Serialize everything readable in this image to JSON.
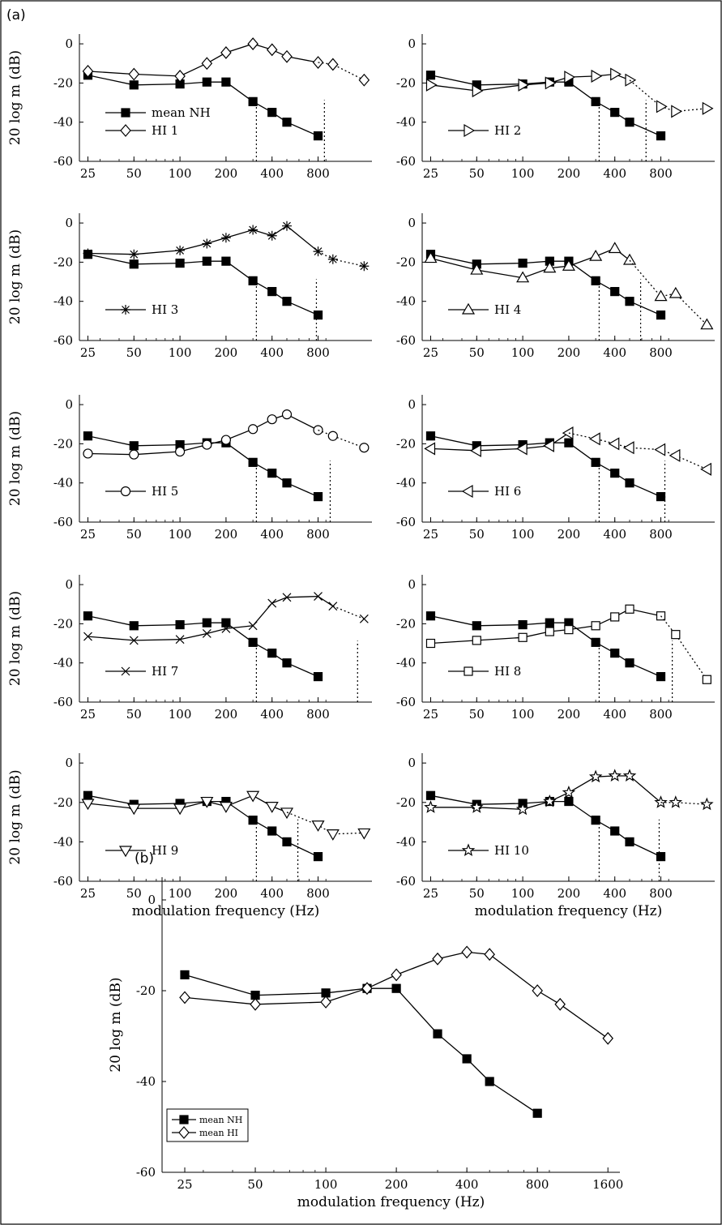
{
  "figure": {
    "panel_a_label": "(a)",
    "panel_b_label": "(b)"
  },
  "chart_data": [
    {
      "type": "line",
      "panel": "a",
      "index": 1,
      "x_scale": "log",
      "ylabel": "20 log m (dB)",
      "xlabel": "",
      "ylim": [
        -60,
        5
      ],
      "yticks": [
        "0",
        "-20",
        "-40",
        "-60"
      ],
      "xticks": [
        "25",
        "50",
        "100",
        "200",
        "400",
        "800"
      ],
      "legend_position": "lower-left",
      "series": [
        {
          "name": "mean NH",
          "marker": "square-filled",
          "x": [
            25,
            50,
            100,
            150,
            200,
            300,
            400,
            500,
            800
          ],
          "y": [
            -16,
            -21,
            -20.5,
            -19.5,
            -19.5,
            -29.5,
            -35,
            -40,
            -47
          ]
        },
        {
          "name": "HI 1",
          "marker": "diamond",
          "x": [
            25,
            50,
            100,
            150,
            200,
            300,
            400,
            500,
            800
          ],
          "y": [
            -14,
            -15.5,
            -16.5,
            -10,
            -4.5,
            0,
            -3,
            -6.5,
            -9.5
          ]
        },
        {
          "name": "",
          "marker": "diamond",
          "dotted": true,
          "x": [
            800,
            1000,
            1600
          ],
          "y": [
            -9.5,
            -10.5,
            -18.5
          ]
        }
      ],
      "cutoffs": [
        316,
        880
      ]
    },
    {
      "type": "line",
      "panel": "a",
      "index": 2,
      "x_scale": "log",
      "ylabel": "",
      "xlabel": "",
      "ylim": [
        -60,
        5
      ],
      "yticks": [
        "0",
        "-20",
        "-40",
        "-60"
      ],
      "xticks": [
        "25",
        "50",
        "100",
        "200",
        "400",
        "800"
      ],
      "legend_position": "lower-left",
      "series": [
        {
          "name": "mean NH",
          "marker": "square-filled",
          "x": [
            25,
            50,
            100,
            150,
            200,
            300,
            400,
            500,
            800
          ],
          "y": [
            -16,
            -21,
            -20.5,
            -19.5,
            -19.5,
            -29.5,
            -35,
            -40,
            -47
          ]
        },
        {
          "name": "HI 2",
          "marker": "triangle-right",
          "x": [
            25,
            50,
            100,
            150,
            200,
            300,
            400,
            500
          ],
          "y": [
            -21,
            -24,
            -21,
            -20,
            -17,
            -16.5,
            -15.5,
            -18.5
          ]
        },
        {
          "name": "",
          "marker": "triangle-right",
          "dotted": true,
          "x": [
            500,
            800,
            1000,
            1600
          ],
          "y": [
            -18.5,
            -32,
            -34.5,
            -33
          ]
        }
      ],
      "cutoffs": [
        316,
        640
      ]
    },
    {
      "type": "line",
      "panel": "a",
      "index": 3,
      "x_scale": "log",
      "ylabel": "20 log m (dB)",
      "xlabel": "",
      "ylim": [
        -60,
        5
      ],
      "yticks": [
        "0",
        "-20",
        "-40",
        "-60"
      ],
      "xticks": [
        "25",
        "50",
        "100",
        "200",
        "400",
        "800"
      ],
      "legend_position": "lower-left",
      "series": [
        {
          "name": "mean NH",
          "marker": "square-filled",
          "x": [
            25,
            50,
            100,
            150,
            200,
            300,
            400,
            500,
            800
          ],
          "y": [
            -16,
            -21,
            -20.5,
            -19.5,
            -19.5,
            -29.5,
            -35,
            -40,
            -47
          ]
        },
        {
          "name": "HI 3",
          "marker": "asterisk",
          "x": [
            25,
            50,
            100,
            150,
            200,
            300,
            400,
            500,
            800
          ],
          "y": [
            -15.5,
            -16,
            -14,
            -10.5,
            -7.5,
            -3.5,
            -6.5,
            -1.5,
            -14.5
          ]
        },
        {
          "name": "",
          "marker": "asterisk",
          "dotted": true,
          "x": [
            800,
            1000,
            1600
          ],
          "y": [
            -14.5,
            -18.5,
            -22
          ]
        }
      ],
      "cutoffs": [
        316,
        780
      ]
    },
    {
      "type": "line",
      "panel": "a",
      "index": 4,
      "x_scale": "log",
      "ylabel": "",
      "xlabel": "",
      "ylim": [
        -60,
        5
      ],
      "yticks": [
        "0",
        "-20",
        "-40",
        "-60"
      ],
      "xticks": [
        "25",
        "50",
        "100",
        "200",
        "400",
        "800"
      ],
      "legend_position": "lower-left",
      "series": [
        {
          "name": "mean NH",
          "marker": "square-filled",
          "x": [
            25,
            50,
            100,
            150,
            200,
            300,
            400,
            500,
            800
          ],
          "y": [
            -16,
            -21,
            -20.5,
            -19.5,
            -19.5,
            -29.5,
            -35,
            -40,
            -47
          ]
        },
        {
          "name": "HI 4",
          "marker": "triangle-up",
          "x": [
            25,
            50,
            100,
            150,
            200,
            300,
            400,
            500
          ],
          "y": [
            -18,
            -24,
            -28,
            -23,
            -22,
            -17,
            -13,
            -19
          ]
        },
        {
          "name": "",
          "marker": "triangle-up",
          "dotted": true,
          "x": [
            500,
            800,
            1000,
            1600
          ],
          "y": [
            -19,
            -37.5,
            -36,
            -52
          ]
        }
      ],
      "cutoffs": [
        316,
        590
      ]
    },
    {
      "type": "line",
      "panel": "a",
      "index": 5,
      "x_scale": "log",
      "ylabel": "20 log m (dB)",
      "xlabel": "",
      "ylim": [
        -60,
        5
      ],
      "yticks": [
        "0",
        "-20",
        "-40",
        "-60"
      ],
      "xticks": [
        "25",
        "50",
        "100",
        "200",
        "400",
        "800"
      ],
      "legend_position": "lower-left",
      "series": [
        {
          "name": "mean NH",
          "marker": "square-filled",
          "x": [
            25,
            50,
            100,
            150,
            200,
            300,
            400,
            500,
            800
          ],
          "y": [
            -16,
            -21,
            -20.5,
            -19.5,
            -19.5,
            -29.5,
            -35,
            -40,
            -47
          ]
        },
        {
          "name": "HI 5",
          "marker": "circle",
          "x": [
            25,
            50,
            100,
            150,
            200,
            300,
            400,
            500,
            800
          ],
          "y": [
            -25,
            -25.5,
            -24,
            -20.5,
            -18,
            -12.5,
            -7.5,
            -5,
            -13
          ]
        },
        {
          "name": "",
          "marker": "circle",
          "dotted": true,
          "x": [
            800,
            1000,
            1600
          ],
          "y": [
            -13,
            -16,
            -22
          ]
        }
      ],
      "cutoffs": [
        316,
        960
      ]
    },
    {
      "type": "line",
      "panel": "a",
      "index": 6,
      "x_scale": "log",
      "ylabel": "",
      "xlabel": "",
      "ylim": [
        -60,
        5
      ],
      "yticks": [
        "0",
        "-20",
        "-40",
        "-60"
      ],
      "xticks": [
        "25",
        "50",
        "100",
        "200",
        "400",
        "800"
      ],
      "legend_position": "lower-left",
      "series": [
        {
          "name": "mean NH",
          "marker": "square-filled",
          "x": [
            25,
            50,
            100,
            150,
            200,
            300,
            400,
            500,
            800
          ],
          "y": [
            -16,
            -21,
            -20.5,
            -19.5,
            -19.5,
            -29.5,
            -35,
            -40,
            -47
          ]
        },
        {
          "name": "HI 6",
          "marker": "triangle-left",
          "x": [
            25,
            50,
            100,
            150,
            200
          ],
          "y": [
            -22.5,
            -23.5,
            -22.5,
            -21,
            -14.5
          ]
        },
        {
          "name": "",
          "marker": "triangle-left",
          "dotted": true,
          "x": [
            200,
            300,
            400,
            500,
            800,
            1000,
            1600
          ],
          "y": [
            -14.5,
            -17.5,
            -20,
            -22,
            -23,
            -26,
            -33
          ]
        }
      ],
      "cutoffs": [
        316,
        850
      ]
    },
    {
      "type": "line",
      "panel": "a",
      "index": 7,
      "x_scale": "log",
      "ylabel": "20 log m (dB)",
      "xlabel": "",
      "ylim": [
        -60,
        5
      ],
      "yticks": [
        "0",
        "-20",
        "-40",
        "-60"
      ],
      "xticks": [
        "25",
        "50",
        "100",
        "200",
        "400",
        "800"
      ],
      "legend_position": "lower-left",
      "series": [
        {
          "name": "mean NH",
          "marker": "square-filled",
          "x": [
            25,
            50,
            100,
            150,
            200,
            300,
            400,
            500,
            800
          ],
          "y": [
            -16,
            -21,
            -20.5,
            -19.5,
            -19.5,
            -29.5,
            -35,
            -40,
            -47
          ]
        },
        {
          "name": "HI 7",
          "marker": "cross",
          "x": [
            25,
            50,
            100,
            150,
            200,
            300,
            400,
            500,
            800,
            1000
          ],
          "y": [
            -26.5,
            -28.5,
            -28,
            -25,
            -22.5,
            -21,
            -9.5,
            -6.5,
            -6,
            -11
          ]
        },
        {
          "name": "",
          "marker": "cross",
          "dotted": true,
          "x": [
            1000,
            1600
          ],
          "y": [
            -11,
            -17.5
          ]
        }
      ],
      "cutoffs": [
        316,
        1450
      ]
    },
    {
      "type": "line",
      "panel": "a",
      "index": 8,
      "x_scale": "log",
      "ylabel": "",
      "xlabel": "",
      "ylim": [
        -60,
        5
      ],
      "yticks": [
        "0",
        "-20",
        "-40",
        "-60"
      ],
      "xticks": [
        "25",
        "50",
        "100",
        "200",
        "400",
        "800"
      ],
      "legend_position": "lower-left",
      "series": [
        {
          "name": "mean NH",
          "marker": "square-filled",
          "x": [
            25,
            50,
            100,
            150,
            200,
            300,
            400,
            500,
            800
          ],
          "y": [
            -16,
            -21,
            -20.5,
            -19.5,
            -19.5,
            -29.5,
            -35,
            -40,
            -47
          ]
        },
        {
          "name": "HI 8",
          "marker": "square",
          "x": [
            25,
            50,
            100,
            150,
            200,
            300,
            400,
            500,
            800
          ],
          "y": [
            -30,
            -28.5,
            -27,
            -24,
            -23,
            -21,
            -16.5,
            -12.5,
            -16
          ]
        },
        {
          "name": "",
          "marker": "square",
          "dotted": true,
          "x": [
            800,
            1000,
            1600
          ],
          "y": [
            -16,
            -25.5,
            -48.5
          ]
        }
      ],
      "cutoffs": [
        316,
        950
      ]
    },
    {
      "type": "line",
      "panel": "a",
      "index": 9,
      "x_scale": "log",
      "ylabel": "20 log m (dB)",
      "xlabel": "modulation frequency (Hz)",
      "ylim": [
        -60,
        5
      ],
      "yticks": [
        "0",
        "-20",
        "-40",
        "-60"
      ],
      "xticks": [
        "25",
        "50",
        "100",
        "200",
        "400",
        "800"
      ],
      "legend_position": "lower-left",
      "series": [
        {
          "name": "mean NH",
          "marker": "square-filled",
          "x": [
            25,
            50,
            100,
            150,
            200,
            300,
            400,
            500,
            800
          ],
          "y": [
            -16.5,
            -21,
            -20.5,
            -19.5,
            -19.5,
            -29,
            -34.5,
            -40,
            -47.5
          ]
        },
        {
          "name": "HI 9",
          "marker": "triangle-down",
          "x": [
            25,
            50,
            100,
            150,
            200,
            300,
            400,
            500
          ],
          "y": [
            -20.5,
            -23,
            -23,
            -19.5,
            -22,
            -16.5,
            -22,
            -25
          ]
        },
        {
          "name": "",
          "marker": "triangle-down",
          "dotted": true,
          "x": [
            500,
            800,
            1000,
            1600
          ],
          "y": [
            -25,
            -31.5,
            -36,
            -35.5
          ]
        }
      ],
      "cutoffs": [
        316,
        590
      ]
    },
    {
      "type": "line",
      "panel": "a",
      "index": 10,
      "x_scale": "log",
      "ylabel": "",
      "xlabel": "modulation frequency (Hz)",
      "ylim": [
        -60,
        5
      ],
      "yticks": [
        "0",
        "-20",
        "-40",
        "-60"
      ],
      "xticks": [
        "25",
        "50",
        "100",
        "200",
        "400",
        "800"
      ],
      "legend_position": "lower-left",
      "series": [
        {
          "name": "mean NH",
          "marker": "square-filled",
          "x": [
            25,
            50,
            100,
            150,
            200,
            300,
            400,
            500,
            800
          ],
          "y": [
            -16.5,
            -21,
            -20.5,
            -19.5,
            -19.5,
            -29,
            -34.5,
            -40,
            -47.5
          ]
        },
        {
          "name": "HI 10",
          "marker": "star",
          "x": [
            25,
            50,
            100,
            150,
            200,
            300,
            400,
            500,
            800
          ],
          "y": [
            -22.5,
            -22.5,
            -23.5,
            -19.5,
            -15,
            -7,
            -6.5,
            -6.5,
            -20
          ]
        },
        {
          "name": "",
          "marker": "star",
          "dotted": true,
          "x": [
            800,
            1000,
            1600
          ],
          "y": [
            -20,
            -20,
            -21
          ]
        }
      ],
      "cutoffs": [
        316,
        780
      ]
    },
    {
      "type": "line",
      "panel": "b",
      "index": 11,
      "x_scale": "log",
      "ylabel": "20 log m (dB)",
      "xlabel": "modulation frequency (Hz)",
      "ylim": [
        -60,
        5
      ],
      "yticks": [
        "0",
        "-20",
        "-40",
        "-60"
      ],
      "xticks": [
        "25",
        "50",
        "100",
        "200",
        "400",
        "800",
        "1600"
      ],
      "legend_position": "lower-left",
      "series": [
        {
          "name": "mean NH",
          "marker": "square-filled",
          "x": [
            25,
            50,
            100,
            150,
            200,
            300,
            400,
            500,
            800
          ],
          "y": [
            -16.5,
            -21,
            -20.5,
            -19.5,
            -19.5,
            -29.5,
            -35,
            -40,
            -47
          ]
        },
        {
          "name": "mean HI",
          "marker": "diamond",
          "x": [
            25,
            50,
            100,
            150,
            200,
            300,
            400,
            500,
            800,
            1000,
            1600
          ],
          "y": [
            -21.5,
            -23,
            -22.5,
            -19.5,
            -16.5,
            -13,
            -11.5,
            -12,
            -20,
            -23,
            -30.5
          ]
        }
      ]
    }
  ]
}
